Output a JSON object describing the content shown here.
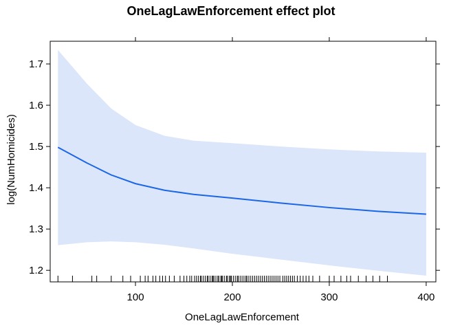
{
  "chart_data": {
    "type": "line",
    "title": "OneLagLawEnforcement effect plot",
    "xlabel": "OneLagLawEnforcement",
    "ylabel": "log(NumHomicides)",
    "xlim": [
      12,
      410
    ],
    "ylim": [
      1.172,
      1.755
    ],
    "x_ticks": [
      100,
      200,
      300,
      400
    ],
    "y_ticks": [
      1.2,
      1.3,
      1.4,
      1.5,
      1.6,
      1.7
    ],
    "colors": {
      "line": "#1a66e6",
      "band": "#dbe6fb",
      "frame": "#000000"
    },
    "series": [
      {
        "x": [
          20,
          50,
          75,
          100,
          130,
          160,
          200,
          250,
          300,
          350,
          400
        ],
        "values": [
          1.498,
          1.46,
          1.431,
          1.41,
          1.394,
          1.384,
          1.375,
          1.363,
          1.352,
          1.343,
          1.336
        ],
        "lower": [
          1.261,
          1.268,
          1.27,
          1.268,
          1.262,
          1.253,
          1.24,
          1.226,
          1.212,
          1.199,
          1.187
        ],
        "upper": [
          1.734,
          1.652,
          1.592,
          1.552,
          1.526,
          1.514,
          1.508,
          1.5,
          1.493,
          1.488,
          1.485
        ]
      }
    ],
    "rug": [
      20,
      35,
      55,
      60,
      75,
      87,
      95,
      105,
      110,
      113,
      118,
      121,
      125,
      128,
      131,
      135,
      140,
      146,
      150,
      153,
      156,
      158,
      161,
      163,
      165,
      167,
      168,
      170,
      172,
      174,
      175,
      177,
      179,
      180,
      181,
      183,
      185,
      186,
      188,
      189,
      190,
      192,
      194,
      195,
      197,
      198,
      199,
      201,
      203,
      205,
      206,
      208,
      210,
      212,
      214,
      215,
      217,
      219,
      221,
      223,
      225,
      227,
      229,
      231,
      233,
      235,
      237,
      239,
      241,
      243,
      245,
      247,
      249,
      252,
      254,
      256,
      258,
      260,
      262,
      264,
      267,
      270,
      273,
      276,
      279,
      283,
      290,
      300,
      305,
      312,
      318,
      322,
      330,
      338,
      345,
      352,
      360
    ],
    "grid": false,
    "legend": "none"
  }
}
